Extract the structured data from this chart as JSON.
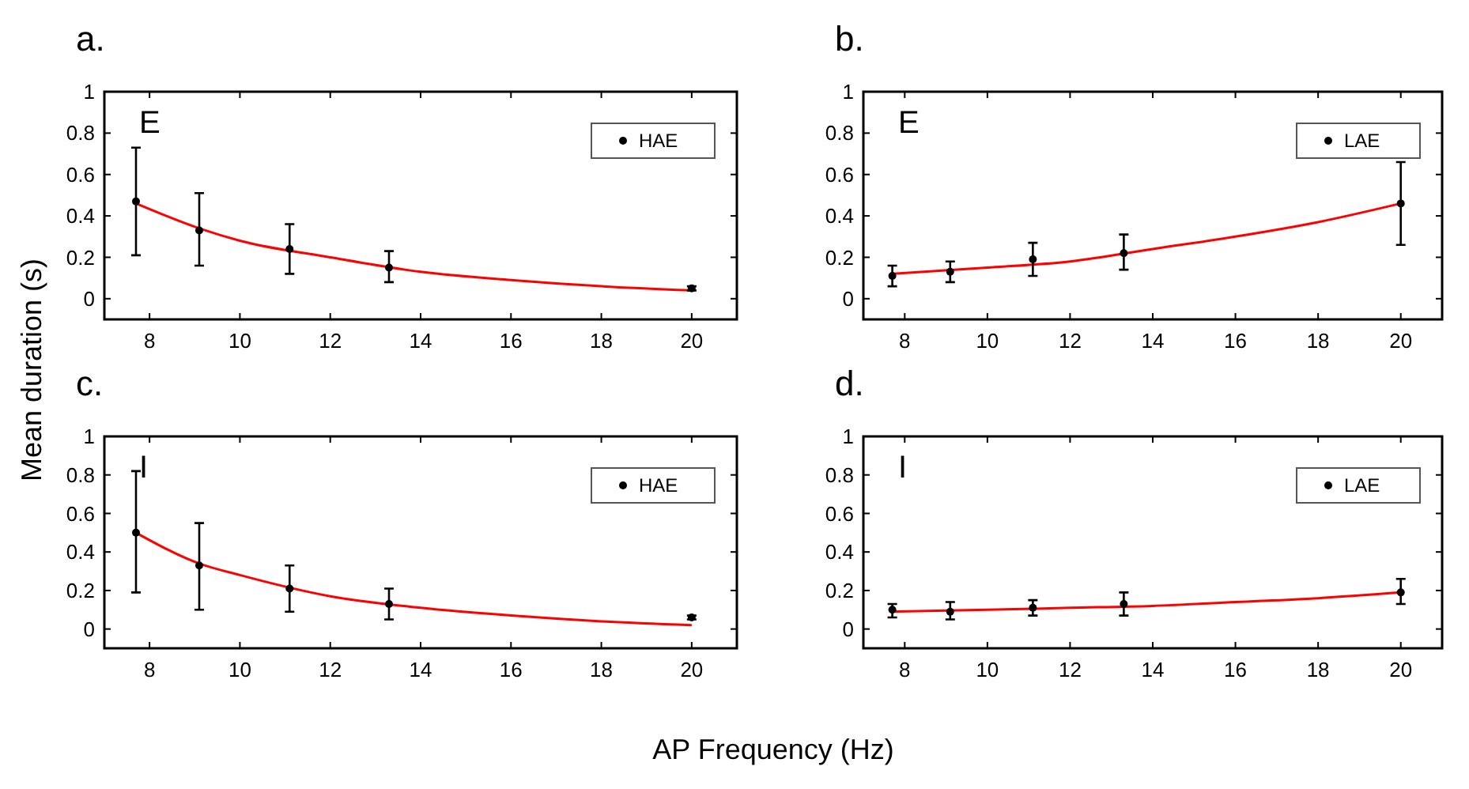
{
  "chart_data": [
    {
      "type": "scatter",
      "title": "a.",
      "ylabel": "Mean duration (s)",
      "annotations": [
        "E"
      ],
      "legend": "top right",
      "xlim": [
        7,
        21
      ],
      "ylim": [
        -0.1,
        1
      ],
      "xticks": [
        8,
        10,
        12,
        14,
        16,
        18,
        20
      ],
      "yticks": [
        0,
        0.2,
        0.4,
        0.6,
        0.8,
        1
      ],
      "series": [
        {
          "name": "HAE",
          "color": "#000000",
          "marker": "circle",
          "x": [
            7.7,
            9.1,
            11.1,
            13.3,
            20
          ],
          "values": [
            0.47,
            0.33,
            0.24,
            0.15,
            0.05
          ],
          "errors": [
            [
              0.21,
              0.73
            ],
            [
              0.16,
              0.51
            ],
            [
              0.12,
              0.36
            ],
            [
              0.08,
              0.23
            ],
            [
              0.04,
              0.06
            ]
          ]
        },
        {
          "type": "line",
          "color": "#ff0000",
          "x": [
            7.7,
            9.1,
            10,
            12,
            14,
            16,
            18,
            20
          ],
          "values": [
            0.46,
            0.34,
            0.28,
            0.2,
            0.13,
            0.09,
            0.06,
            0.04
          ]
        }
      ]
    },
    {
      "type": "scatter",
      "title": "b.",
      "annotations": [
        "E"
      ],
      "legend": "top right",
      "xlim": [
        7,
        21
      ],
      "ylim": [
        -0.1,
        1
      ],
      "xticks": [
        8,
        10,
        12,
        14,
        16,
        18,
        20
      ],
      "yticks": [
        0,
        0.2,
        0.4,
        0.6,
        0.8,
        1
      ],
      "series": [
        {
          "name": "LAE",
          "color": "#000000",
          "marker": "circle",
          "x": [
            7.7,
            9.1,
            11.1,
            13.3,
            20
          ],
          "values": [
            0.11,
            0.13,
            0.19,
            0.22,
            0.46
          ],
          "errors": [
            [
              0.06,
              0.16
            ],
            [
              0.08,
              0.18
            ],
            [
              0.11,
              0.27
            ],
            [
              0.14,
              0.31
            ],
            [
              0.26,
              0.66
            ]
          ]
        },
        {
          "type": "line",
          "color": "#ff0000",
          "x": [
            7.7,
            10,
            12,
            14,
            16,
            18,
            20
          ],
          "values": [
            0.12,
            0.15,
            0.18,
            0.24,
            0.3,
            0.37,
            0.46
          ]
        }
      ]
    },
    {
      "type": "scatter",
      "title": "c.",
      "xlabel": "AP Frequency (Hz)",
      "annotations": [
        "I"
      ],
      "legend": "top right",
      "xlim": [
        7,
        21
      ],
      "ylim": [
        -0.1,
        1
      ],
      "xticks": [
        8,
        10,
        12,
        14,
        16,
        18,
        20
      ],
      "yticks": [
        0,
        0.2,
        0.4,
        0.6,
        0.8,
        1
      ],
      "series": [
        {
          "name": "HAE",
          "color": "#000000",
          "marker": "circle",
          "x": [
            7.7,
            9.1,
            11.1,
            13.3,
            20
          ],
          "values": [
            0.5,
            0.33,
            0.21,
            0.13,
            0.06
          ],
          "errors": [
            [
              0.19,
              0.82
            ],
            [
              0.1,
              0.55
            ],
            [
              0.09,
              0.33
            ],
            [
              0.05,
              0.21
            ],
            [
              0.05,
              0.07
            ]
          ]
        },
        {
          "type": "line",
          "color": "#ff0000",
          "x": [
            7.7,
            9.1,
            10,
            12,
            14,
            16,
            18,
            20
          ],
          "values": [
            0.5,
            0.34,
            0.28,
            0.17,
            0.11,
            0.07,
            0.04,
            0.02
          ]
        }
      ]
    },
    {
      "type": "scatter",
      "title": "d.",
      "annotations": [
        "I"
      ],
      "legend": "top right",
      "xlim": [
        7,
        21
      ],
      "ylim": [
        -0.1,
        1
      ],
      "xticks": [
        8,
        10,
        12,
        14,
        16,
        18,
        20
      ],
      "yticks": [
        0,
        0.2,
        0.4,
        0.6,
        0.8,
        1
      ],
      "series": [
        {
          "name": "LAE",
          "color": "#000000",
          "marker": "circle",
          "x": [
            7.7,
            9.1,
            11.1,
            13.3,
            20
          ],
          "values": [
            0.1,
            0.09,
            0.11,
            0.13,
            0.19
          ],
          "errors": [
            [
              0.06,
              0.13
            ],
            [
              0.05,
              0.14
            ],
            [
              0.07,
              0.15
            ],
            [
              0.07,
              0.19
            ],
            [
              0.13,
              0.26
            ]
          ]
        },
        {
          "type": "line",
          "color": "#ff0000",
          "x": [
            7.7,
            10,
            12,
            14,
            16,
            18,
            20
          ],
          "values": [
            0.09,
            0.1,
            0.11,
            0.12,
            0.14,
            0.16,
            0.19
          ]
        }
      ]
    }
  ]
}
